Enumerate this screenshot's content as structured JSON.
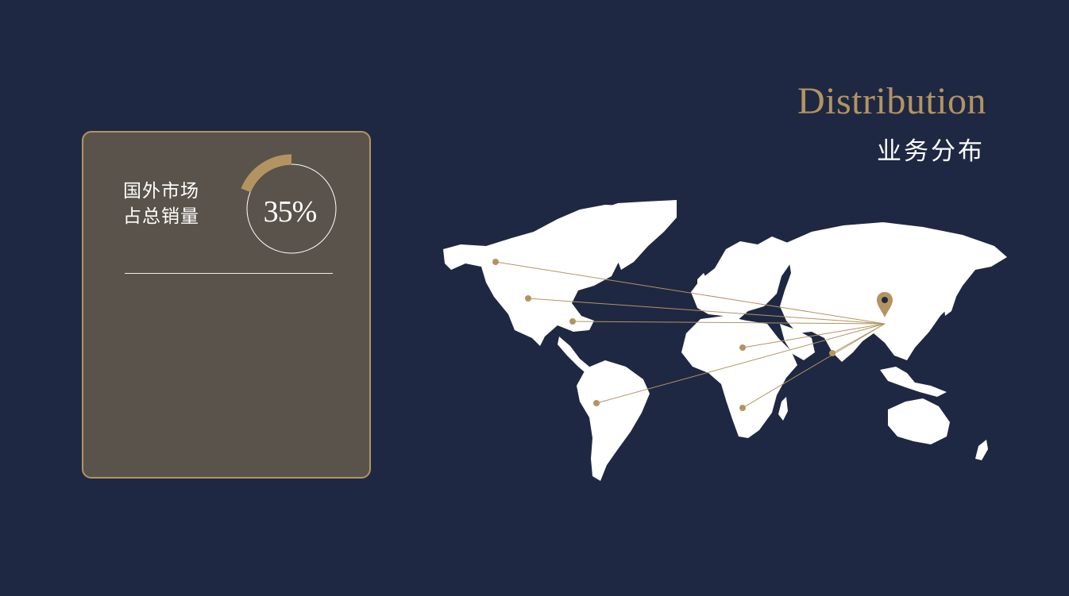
{
  "header": {
    "title_en": "Distribution",
    "title_zh": "业务分布"
  },
  "card": {
    "label_line1": "国外市场",
    "label_line2": "占总销量",
    "percent_value": 35,
    "percent_text": "35%"
  },
  "map": {
    "icon": "location-pin-icon",
    "markers": [
      "canada",
      "usa-west",
      "usa-east",
      "south-america",
      "africa-north",
      "africa-south",
      "india"
    ]
  },
  "colors": {
    "background": "#1f2842",
    "accent": "#b39460",
    "card": "#5a534b",
    "land": "#ffffff"
  }
}
